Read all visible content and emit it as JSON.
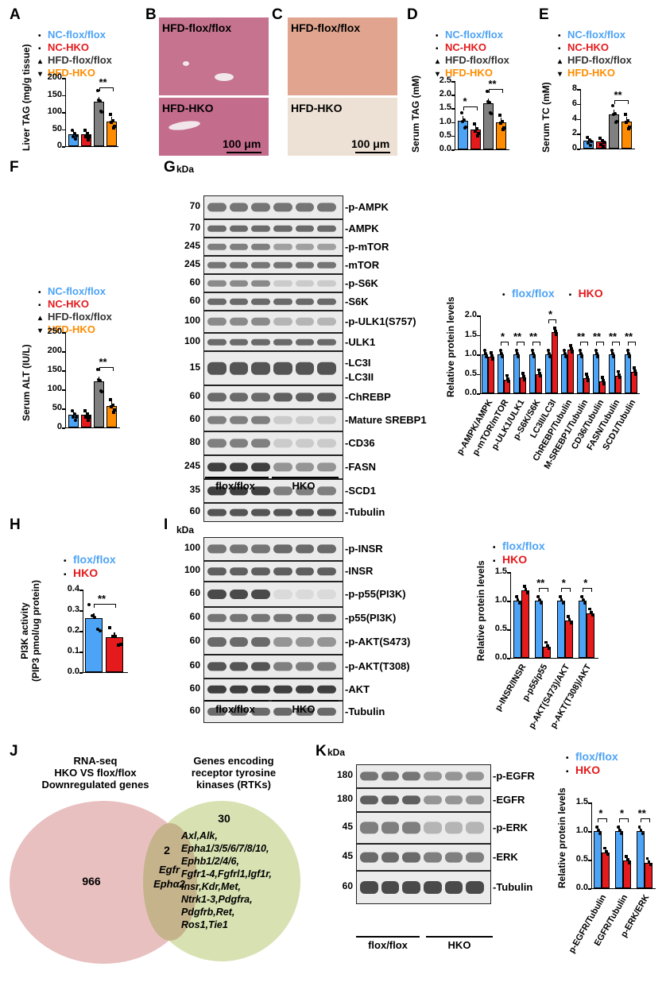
{
  "colors": {
    "blue": "#4da3f5",
    "red": "#e41a1c",
    "gray": "#808080",
    "orange": "#ff8c00"
  },
  "panels": {
    "A": "A",
    "B": "B",
    "C": "C",
    "D": "D",
    "E": "E",
    "F": "F",
    "G": "G",
    "H": "H",
    "I": "I",
    "J": "J",
    "K": "K"
  },
  "legend4": {
    "nc_flox": "NC-flox/flox",
    "nc_hko": "NC-HKO",
    "hfd_flox": "HFD-flox/flox",
    "hfd_hko": "HFD-HKO"
  },
  "legend2": {
    "flox": "flox/flox",
    "hko": "HKO"
  },
  "markers": {
    "circle": "•",
    "square": "▪",
    "tri": "▴",
    "tri_down": "▾"
  },
  "sig": {
    "one": "*",
    "two": "**"
  },
  "histology": {
    "b_top": "HFD-flox/flox",
    "b_bot": "HFD-HKO",
    "c_top": "HFD-flox/flox",
    "c_bot": "HFD-HKO",
    "scale": "100 μm"
  },
  "kda": "kDa",
  "group_labels": {
    "flox": "flox/flox",
    "hko": "HKO"
  },
  "blots_g": [
    {
      "mw": "70",
      "name": "p-AMPK"
    },
    {
      "mw": "70",
      "name": "AMPK"
    },
    {
      "mw": "245",
      "name": "p-mTOR"
    },
    {
      "mw": "245",
      "name": "mTOR"
    },
    {
      "mw": "60",
      "name": "p-S6K"
    },
    {
      "mw": "60",
      "name": "S6K"
    },
    {
      "mw": "100",
      "name": "p-ULK1(S757)"
    },
    {
      "mw": "100",
      "name": "ULK1"
    },
    {
      "mw": "15",
      "name": "LC3I\nLC3II"
    },
    {
      "mw": "60",
      "name": "ChREBP"
    },
    {
      "mw": "60",
      "name": "Mature SREBP1"
    },
    {
      "mw": "80",
      "name": "CD36"
    },
    {
      "mw": "245",
      "name": "FASN"
    },
    {
      "mw": "35",
      "name": "SCD1"
    },
    {
      "mw": "60",
      "name": "Tubulin"
    }
  ],
  "blots_i": [
    {
      "mw": "100",
      "name": "p-INSR"
    },
    {
      "mw": "100",
      "name": "INSR"
    },
    {
      "mw": "60",
      "name": "p-p55(PI3K)"
    },
    {
      "mw": "60",
      "name": "p55(PI3K)"
    },
    {
      "mw": "60",
      "name": "p-AKT(S473)"
    },
    {
      "mw": "60",
      "name": "p-AKT(T308)"
    },
    {
      "mw": "60",
      "name": "AKT"
    },
    {
      "mw": "60",
      "name": "Tubulin"
    }
  ],
  "blots_k": [
    {
      "mw": "180",
      "name": "p-EGFR"
    },
    {
      "mw": "180",
      "name": "EGFR"
    },
    {
      "mw": "45",
      "name": "p-ERK"
    },
    {
      "mw": "45",
      "name": "ERK"
    },
    {
      "mw": "60",
      "name": "Tubulin"
    }
  ],
  "venn": {
    "left_title": "RNA-seq\nHKO VS flox/flox\nDownregulated genes",
    "right_title": "Genes encoding\nreceptor tyrosine\nkinases (RTKs)",
    "left_count": "966",
    "overlap_count": "2",
    "right_count": "30",
    "overlap_genes": "Egfr\nEphα2",
    "right_genes": "Axl,Alk,\nEpha1/3/5/6/7/8/10,\nEphb1/2/4/6,\nFgfr1-4,Fgfrl1,Igf1r,\nInsr,Kdr,Met,\nNtrk1-3,Pdgfra,\nPdgfrb,Ret,\nRos1,Tie1"
  },
  "chart_data": [
    {
      "panel": "A",
      "type": "bar",
      "ylabel": "Liver TAG (mg/g tissue)",
      "ylim": [
        0,
        200
      ],
      "yticks": [
        0,
        50,
        100,
        150,
        200
      ],
      "categories": [
        "NC-flox/flox",
        "NC-HKO",
        "HFD-flox/flox",
        "HFD-HKO"
      ],
      "values": [
        36,
        35,
        130,
        73
      ],
      "sig": [
        {
          "pair": [
            2,
            3
          ],
          "label": "**"
        }
      ]
    },
    {
      "panel": "D",
      "type": "bar",
      "ylabel": "Serum TAG (mM)",
      "ylim": [
        0,
        2.5
      ],
      "yticks": [
        0.0,
        0.5,
        1.0,
        1.5,
        2.0,
        2.5
      ],
      "categories": [
        "NC-flox/flox",
        "NC-HKO",
        "HFD-flox/flox",
        "HFD-HKO"
      ],
      "values": [
        1.05,
        0.72,
        1.68,
        0.98
      ],
      "sig": [
        {
          "pair": [
            0,
            1
          ],
          "label": "*"
        },
        {
          "pair": [
            2,
            3
          ],
          "label": "**"
        }
      ]
    },
    {
      "panel": "E",
      "type": "bar",
      "ylabel": "Serum TC (mM)",
      "ylim": [
        0,
        8
      ],
      "yticks": [
        0,
        2,
        4,
        6,
        8
      ],
      "categories": [
        "NC-flox/flox",
        "NC-HKO",
        "HFD-flox/flox",
        "HFD-HKO"
      ],
      "values": [
        1.1,
        1.0,
        4.6,
        3.6
      ],
      "sig": [
        {
          "pair": [
            2,
            3
          ],
          "label": "**"
        }
      ]
    },
    {
      "panel": "F",
      "type": "bar",
      "ylabel": "Serum ALT (IU/L)",
      "ylim": [
        0,
        250
      ],
      "yticks": [
        0,
        50,
        100,
        150,
        200,
        250
      ],
      "categories": [
        "NC-flox/flox",
        "NC-HKO",
        "HFD-flox/flox",
        "HFD-HKO"
      ],
      "values": [
        33,
        34,
        121,
        57
      ],
      "sig": [
        {
          "pair": [
            2,
            3
          ],
          "label": "**"
        }
      ]
    },
    {
      "panel": "G",
      "type": "bar",
      "ylabel": "Relative protein levels",
      "ylim": [
        0,
        2.0
      ],
      "yticks": [
        0.0,
        0.5,
        1.0,
        1.5,
        2.0
      ],
      "categories": [
        "p-AMPK/AMPK",
        "p-mTOR/mTOR",
        "p-ULK1/ULK1",
        "p-S6K/S6K",
        "LC3II/LC3I",
        "ChREBP/Tubulin",
        "M-SREBP1/Tubulin",
        "CD36/Tubulin",
        "FASN/Tubulin",
        "SCD1/Tubulin"
      ],
      "series": [
        {
          "name": "flox/flox",
          "values": [
            1.0,
            1.0,
            1.0,
            1.0,
            1.0,
            1.0,
            1.0,
            1.0,
            1.0,
            1.0
          ]
        },
        {
          "name": "HKO",
          "values": [
            0.93,
            0.35,
            0.4,
            0.5,
            1.57,
            1.12,
            0.38,
            0.3,
            0.45,
            0.55
          ]
        }
      ],
      "sig": [
        "",
        "*",
        "**",
        "**",
        "*",
        "",
        "**",
        "**",
        "**",
        "**"
      ]
    },
    {
      "panel": "H",
      "type": "bar",
      "ylabel": "PI3K activity\n(PIP3 pmol/ug protein)",
      "ylim": [
        0,
        0.4
      ],
      "yticks": [
        0.0,
        0.1,
        0.2,
        0.3,
        0.4
      ],
      "categories": [
        "flox/flox",
        "HKO"
      ],
      "values": [
        0.26,
        0.17
      ],
      "sig": [
        {
          "pair": [
            0,
            1
          ],
          "label": "**"
        }
      ]
    },
    {
      "panel": "I",
      "type": "bar",
      "ylabel": "Relative protein levels",
      "ylim": [
        0,
        1.5
      ],
      "yticks": [
        0.0,
        0.5,
        1.0,
        1.5
      ],
      "categories": [
        "p-INSR/INSR",
        "p-p55/p55",
        "p-AKT(S473)/AKT",
        "p-AKT(T308)/AKT"
      ],
      "series": [
        {
          "name": "flox/flox",
          "values": [
            1.0,
            1.0,
            1.0,
            1.0
          ]
        },
        {
          "name": "HKO",
          "values": [
            1.18,
            0.2,
            0.65,
            0.78
          ]
        }
      ],
      "sig": [
        "",
        "**",
        "*",
        "*"
      ]
    },
    {
      "panel": "K",
      "type": "bar",
      "ylabel": "Relative protein levels",
      "ylim": [
        0,
        1.5
      ],
      "yticks": [
        0.0,
        0.5,
        1.0,
        1.5
      ],
      "categories": [
        "p-EGFR/Tubulin",
        "EGFR/Tubulin",
        "p-ERK/ERK"
      ],
      "series": [
        {
          "name": "flox/flox",
          "values": [
            1.0,
            1.0,
            1.0
          ]
        },
        {
          "name": "HKO",
          "values": [
            0.63,
            0.48,
            0.45
          ]
        }
      ],
      "sig": [
        "*",
        "*",
        "**"
      ]
    }
  ]
}
